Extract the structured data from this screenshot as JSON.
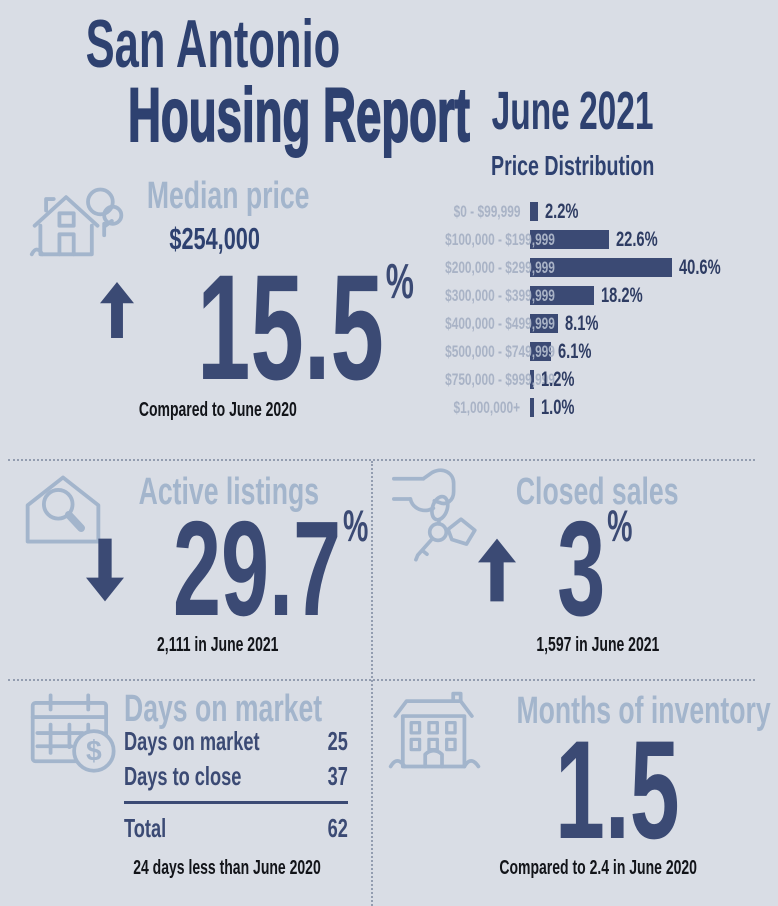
{
  "report": {
    "title_line1": "San Antonio",
    "title_line2": "Housing Report",
    "period": "June 2021"
  },
  "chart_data": {
    "type": "bar",
    "orientation": "horizontal",
    "title": "Price Distribution",
    "categories": [
      "$0 - $99,999",
      "$100,000 - $199,999",
      "$200,000 - $299,999",
      "$300,000 - $399,999",
      "$400,000 - $499,999",
      "$500,000 - $749,999",
      "$750,000 - $999,999",
      "$1,000,000+"
    ],
    "values": [
      2.2,
      22.6,
      40.6,
      18.2,
      8.1,
      6.1,
      1.2,
      1.0
    ],
    "value_unit": "%",
    "xlim": [
      0,
      45
    ],
    "legend": "none",
    "grid": "off"
  },
  "median_price": {
    "heading": "Median price",
    "value": "$254,000",
    "change_value": "15.5",
    "change_unit": "%",
    "change_direction": "up",
    "footnote": "Compared to June 2020",
    "icon": "house-with-tree-icon"
  },
  "active_listings": {
    "heading": "Active listings",
    "change_value": "29.7",
    "change_unit": "%",
    "change_direction": "down",
    "footnote": "2,111 in June 2021",
    "icon": "house-with-magnifier-icon"
  },
  "closed_sales": {
    "heading": "Closed sales",
    "change_value": "3",
    "change_unit": "%",
    "change_direction": "up",
    "footnote": "1,597 in June 2021",
    "icon": "hand-with-keys-icon"
  },
  "days_on_market": {
    "heading": "Days on market",
    "rows": [
      {
        "label": "Days on market",
        "value": "25"
      },
      {
        "label": "Days to close",
        "value": "37"
      }
    ],
    "total": {
      "label": "Total",
      "value": "62"
    },
    "footnote": "24 days less than June 2020",
    "icon": "calendar-with-dollar-icon"
  },
  "months_of_inventory": {
    "heading": "Months of inventory",
    "value": "1.5",
    "footnote": "Compared to 2.4 in June 2020",
    "icon": "apartment-building-icon"
  },
  "colors": {
    "background": "#d9dde5",
    "navy": "#3b4a74",
    "title_navy": "#2e4170",
    "heading_light_blue": "#a3b5cc",
    "chart_label_blue": "#a9b3c6",
    "footnote_dark": "#121419",
    "divider_gray": "#939db0"
  }
}
